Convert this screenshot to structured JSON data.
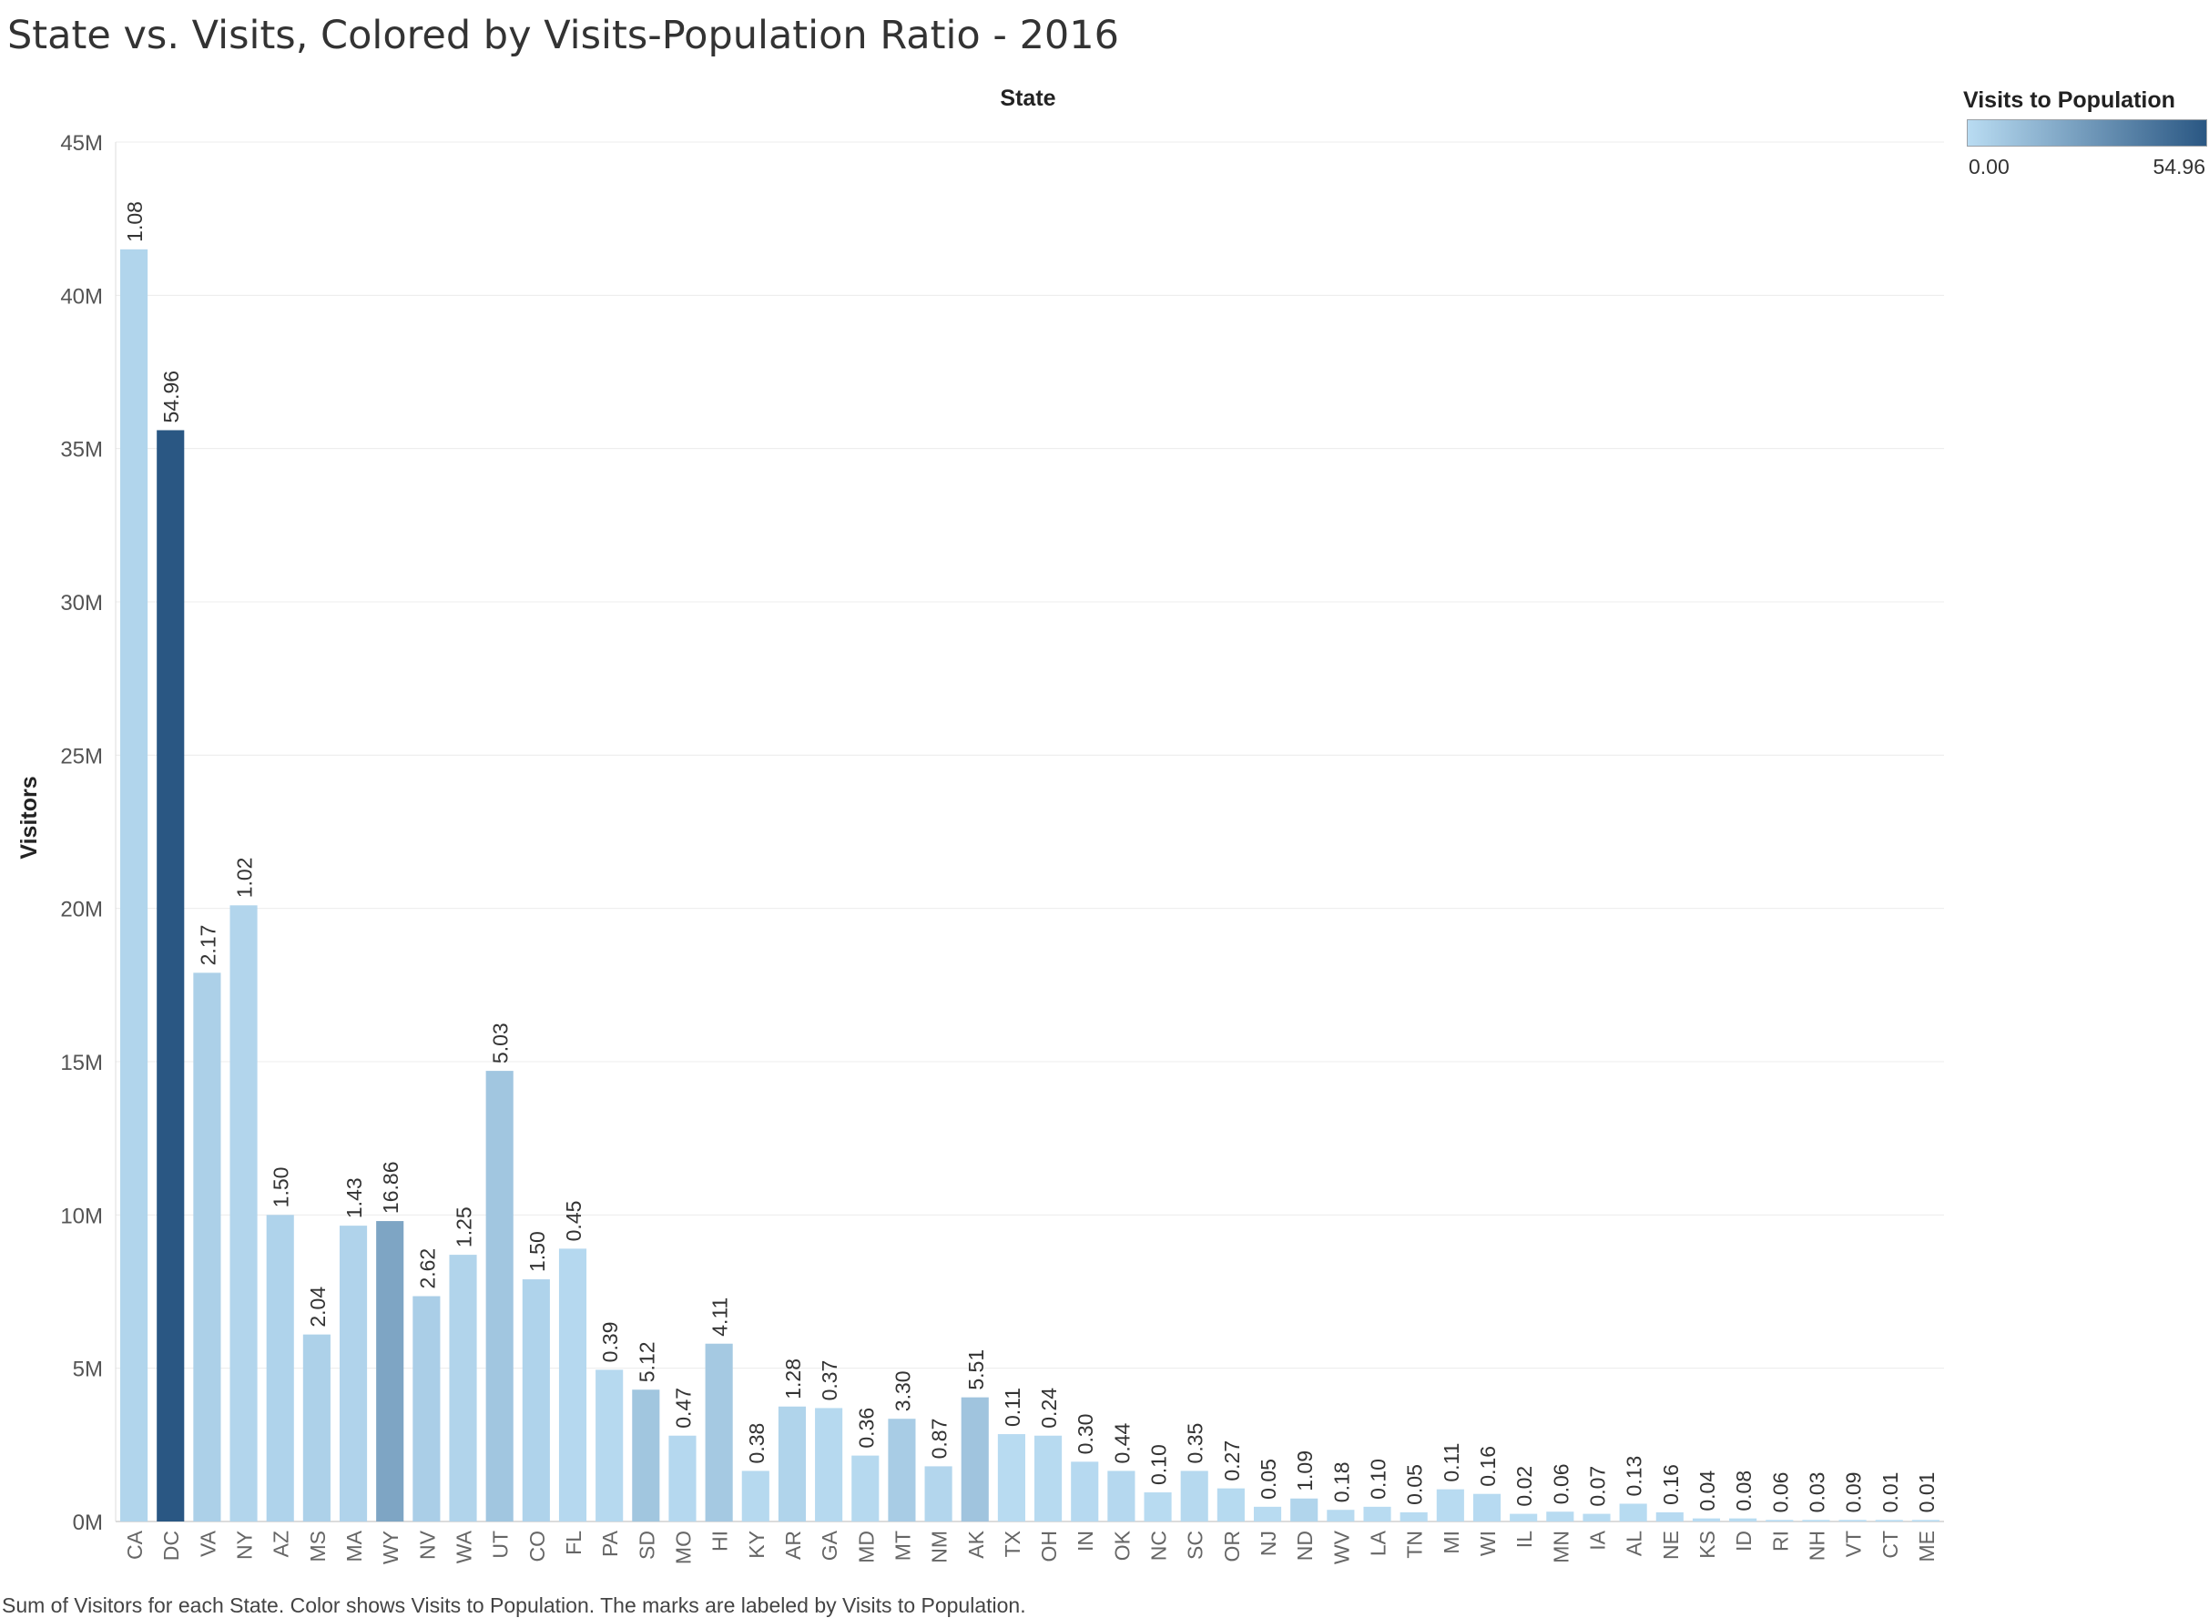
{
  "title": "State vs. Visits, Colored by Visits-Population Ratio - 2016",
  "caption": "Sum of Visitors for each State.  Color shows Visits to Population.  The marks are labeled by Visits to Population.",
  "legend": {
    "title": "Visits to Population",
    "min_label": "0.00",
    "max_label": "54.96",
    "color_low": "#b9dcf2",
    "color_high": "#2a5783"
  },
  "chart_data": {
    "type": "bar",
    "x_header": "State",
    "ylabel": "Visitors",
    "ylim": [
      0,
      45000000
    ],
    "y_ticks": [
      0,
      5000000,
      10000000,
      15000000,
      20000000,
      25000000,
      30000000,
      35000000,
      40000000,
      45000000
    ],
    "y_tick_labels": [
      "0M",
      "5M",
      "10M",
      "15M",
      "20M",
      "25M",
      "30M",
      "35M",
      "40M",
      "45M"
    ],
    "grid": true,
    "color_range": [
      0,
      54.96
    ],
    "categories": [
      "CA",
      "DC",
      "VA",
      "NY",
      "AZ",
      "MS",
      "MA",
      "WY",
      "NV",
      "WA",
      "UT",
      "CO",
      "FL",
      "PA",
      "SD",
      "MO",
      "HI",
      "KY",
      "AR",
      "GA",
      "MD",
      "MT",
      "NM",
      "AK",
      "TX",
      "OH",
      "IN",
      "OK",
      "NC",
      "SC",
      "OR",
      "NJ",
      "ND",
      "WV",
      "LA",
      "TN",
      "MI",
      "WI",
      "IL",
      "MN",
      "IA",
      "AL",
      "NE",
      "KS",
      "ID",
      "RI",
      "NH",
      "VT",
      "CT",
      "ME"
    ],
    "values": [
      41500000,
      35600000,
      17900000,
      20100000,
      10000000,
      6100000,
      9650000,
      9800000,
      7350000,
      8700000,
      14700000,
      7900000,
      8900000,
      4950000,
      4300000,
      2800000,
      5800000,
      1650000,
      3750000,
      3700000,
      2150000,
      3350000,
      1800000,
      4050000,
      2850000,
      2800000,
      1950000,
      1650000,
      950000,
      1650000,
      1080000,
      480000,
      750000,
      380000,
      480000,
      300000,
      1050000,
      900000,
      250000,
      320000,
      250000,
      580000,
      300000,
      100000,
      100000,
      50000,
      50000,
      50000,
      50000,
      50000
    ],
    "labels": [
      "1.08",
      "54.96",
      "2.17",
      "1.02",
      "1.50",
      "2.04",
      "1.43",
      "16.86",
      "2.62",
      "1.25",
      "5.03",
      "1.50",
      "0.45",
      "0.39",
      "5.12",
      "0.47",
      "4.11",
      "0.38",
      "1.28",
      "0.37",
      "0.36",
      "3.30",
      "0.87",
      "5.51",
      "0.11",
      "0.24",
      "0.30",
      "0.44",
      "0.10",
      "0.35",
      "0.27",
      "0.05",
      "1.09",
      "0.18",
      "0.10",
      "0.05",
      "0.11",
      "0.16",
      "0.02",
      "0.06",
      "0.07",
      "0.13",
      "0.16",
      "0.04",
      "0.08",
      "0.06",
      "0.03",
      "0.09",
      "0.01",
      "0.01"
    ]
  }
}
